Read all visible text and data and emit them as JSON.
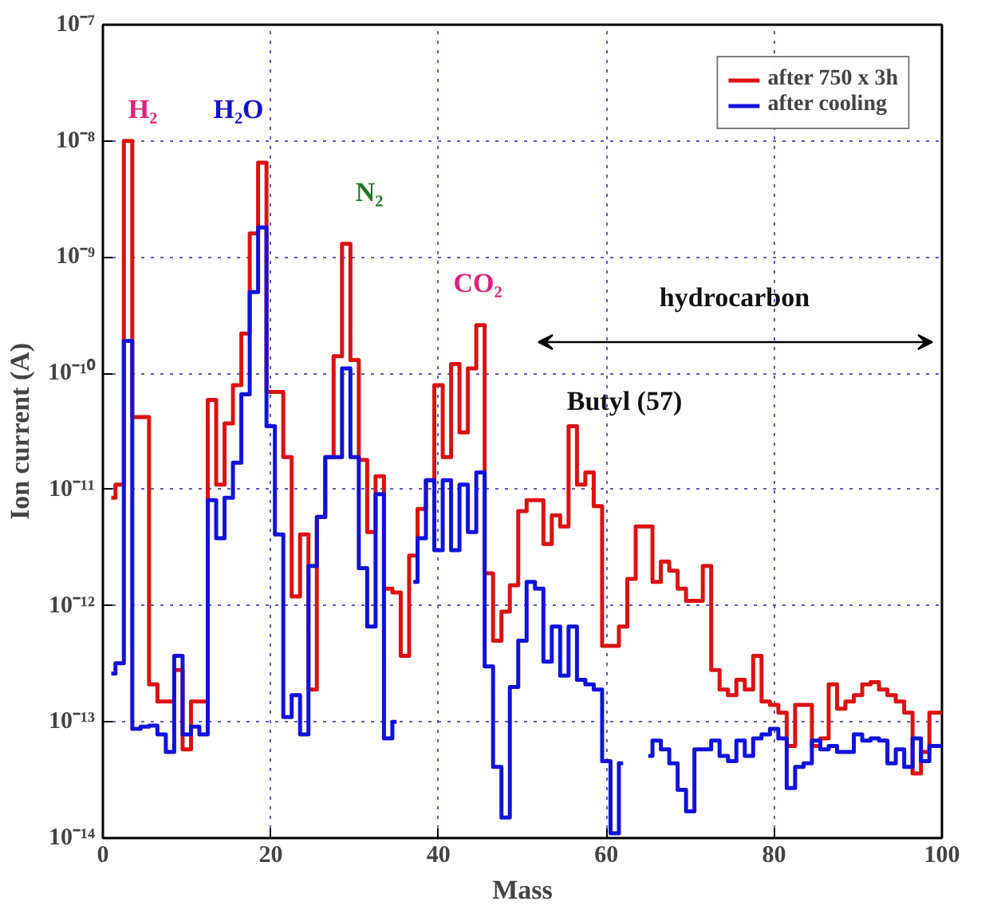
{
  "chart_data": {
    "type": "step",
    "xlabel": "Mass",
    "ylabel": "Ion current (A)",
    "x": [
      1,
      2,
      3,
      4,
      5,
      6,
      7,
      8,
      9,
      10,
      11,
      12,
      13,
      14,
      15,
      16,
      17,
      18,
      19,
      20,
      21,
      22,
      23,
      24,
      25,
      26,
      27,
      28,
      29,
      30,
      31,
      32,
      33,
      34,
      35,
      36,
      37,
      38,
      39,
      40,
      41,
      42,
      43,
      44,
      45,
      46,
      47,
      48,
      49,
      50,
      51,
      52,
      53,
      54,
      55,
      56,
      57,
      58,
      59,
      60,
      61,
      62,
      63,
      64,
      65,
      66,
      67,
      68,
      69,
      70,
      71,
      72,
      73,
      74,
      75,
      76,
      77,
      78,
      79,
      80,
      81,
      82,
      83,
      84,
      85,
      86,
      87,
      88,
      89,
      90,
      91,
      92,
      93,
      94,
      95,
      96,
      97,
      98,
      99,
      100
    ],
    "series": [
      {
        "name": "after 750 x 3h",
        "color": "#dd1111",
        "values": [
          8.5e-12,
          1.1e-11,
          1e-08,
          4.2e-11,
          4.2e-11,
          2.1e-13,
          1.5e-13,
          1.5e-13,
          2.8e-13,
          5.8e-14,
          1.5e-13,
          1.5e-13,
          5.9e-11,
          1.1e-11,
          3.7e-11,
          7.9e-11,
          2.2e-10,
          1.6e-09,
          6.5e-09,
          6.9e-11,
          6.9e-11,
          1.9e-11,
          1.2e-12,
          4.1e-12,
          1.9e-13,
          5.8e-12,
          1.9e-11,
          1.4e-10,
          1.3e-09,
          1.3e-10,
          1.8e-11,
          4.3e-12,
          1.3e-11,
          1.4e-12,
          1.3e-12,
          3.7e-13,
          2.7e-12,
          6.8e-12,
          1.2e-11,
          7.9e-11,
          1.9e-11,
          1.2e-10,
          3.1e-11,
          1.1e-10,
          2.6e-10,
          1.9e-12,
          5e-13,
          8.9e-13,
          1.5e-12,
          6.5e-12,
          8.1e-12,
          8.1e-12,
          3.4e-12,
          6e-12,
          4.8e-12,
          3.5e-11,
          1.1e-11,
          1.4e-11,
          7.2e-12,
          4.5e-13,
          4.5e-13,
          6.6e-13,
          1.7e-12,
          4.8e-12,
          4.8e-12,
          1.6e-12,
          2.4e-12,
          2e-12,
          1.4e-12,
          1.1e-12,
          1.1e-12,
          2.2e-12,
          2.8e-13,
          1.9e-13,
          1.7e-13,
          2.3e-13,
          1.9e-13,
          3.7e-13,
          1.5e-13,
          1.4e-13,
          1.2e-13,
          6.2e-14,
          1.4e-13,
          1.4e-13,
          6.2e-14,
          7.2e-14,
          2.1e-13,
          1.3e-13,
          1.5e-13,
          1.7e-13,
          2.1e-13,
          2.2e-13,
          1.9e-13,
          1.7e-13,
          1.5e-13,
          1.2e-13,
          3.6e-14,
          5.5e-14,
          1.2e-13,
          1.2e-13
        ]
      },
      {
        "name": "after cooling",
        "color": "#1111dd",
        "values": [
          2.6e-13,
          3.2e-13,
          1.9e-10,
          8.7e-14,
          9.1e-14,
          9.3e-14,
          7.8e-14,
          5.5e-14,
          3.7e-13,
          7.8e-14,
          9.1e-14,
          7.8e-14,
          8.1e-12,
          3.8e-12,
          8.5e-12,
          1.7e-11,
          6.6e-11,
          5e-10,
          1.8e-09,
          3.5e-11,
          4.1e-12,
          1.1e-13,
          1.7e-13,
          7.8e-14,
          2.2e-12,
          5.8e-12,
          1.9e-11,
          1.9e-11,
          1.1e-10,
          1.9e-11,
          2.1e-12,
          6.6e-13,
          9.1e-12,
          7.2e-14,
          1e-13,
          null,
          1.6e-12,
          3.8e-12,
          1.2e-11,
          3e-12,
          1.2e-11,
          3e-12,
          1.1e-11,
          4.3e-12,
          1.4e-11,
          3e-13,
          4.1e-14,
          1.5e-14,
          2e-13,
          5e-13,
          1.6e-12,
          1.4e-12,
          3.3e-13,
          6.6e-13,
          2.5e-13,
          6.6e-13,
          2.3e-13,
          2.1e-13,
          1.9e-13,
          4.6e-14,
          1.1e-14,
          4.4e-14,
          null,
          null,
          5.1e-14,
          6.9e-14,
          5.8e-14,
          4.4e-14,
          2.6e-14,
          1.7e-14,
          5.8e-14,
          5.8e-14,
          6.9e-14,
          5.1e-14,
          4.6e-14,
          6.9e-14,
          5.1e-14,
          7.2e-14,
          7.8e-14,
          8.7e-14,
          7.2e-14,
          2.7e-14,
          4.1e-14,
          4.4e-14,
          6.9e-14,
          5.8e-14,
          6.2e-14,
          5.5e-14,
          5.5e-14,
          7.8e-14,
          6.9e-14,
          7.2e-14,
          6.9e-14,
          4.4e-14,
          5.8e-14,
          4.1e-14,
          7.2e-14,
          4.6e-14,
          6.2e-14,
          6.2e-14
        ]
      }
    ],
    "log": "y",
    "xlim": [
      0,
      100
    ],
    "xticks": [
      0,
      20,
      40,
      60,
      80,
      100
    ],
    "ylim": [
      1e-14,
      1e-07
    ],
    "yticks": [
      {
        "value": 1e-14,
        "label": "10⁻¹⁴"
      },
      {
        "value": 1e-13,
        "label": "10⁻¹³"
      },
      {
        "value": 1e-12,
        "label": "10⁻¹²"
      },
      {
        "value": 1e-11,
        "label": "10⁻¹¹"
      },
      {
        "value": 1e-10,
        "label": "10⁻¹⁰"
      },
      {
        "value": 1e-09,
        "label": "10⁻⁹"
      },
      {
        "value": 1e-08,
        "label": "10⁻⁸"
      },
      {
        "value": 1e-07,
        "label": "10⁻⁷"
      }
    ],
    "grid": true,
    "legend": "top right",
    "line_style": "solid",
    "marker": "none",
    "annotations": [
      "H₂",
      "H₂O",
      "N₂",
      "CO₂",
      "hydrocarbon",
      "Butyl (57)"
    ]
  }
}
